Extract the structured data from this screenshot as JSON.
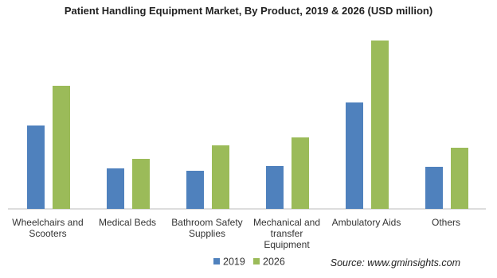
{
  "chart_data": {
    "type": "bar",
    "title": "Patient Handling Equipment Market, By Product, 2019 & 2026 (USD million)",
    "source": "Source: www.gminsights.com",
    "categories": [
      "Wheelchairs and Scooters",
      "Medical Beds",
      "Bathroom Safety Supplies",
      "Mechanical and transfer Equipment",
      "Ambulatory Aids",
      "Others"
    ],
    "series": [
      {
        "name": "2019",
        "color": "#4f81bd",
        "values": [
          105,
          51,
          48,
          54,
          134,
          53
        ]
      },
      {
        "name": "2026",
        "color": "#9bbb59",
        "values": [
          155,
          63,
          80,
          90,
          212,
          77
        ]
      }
    ]
  }
}
